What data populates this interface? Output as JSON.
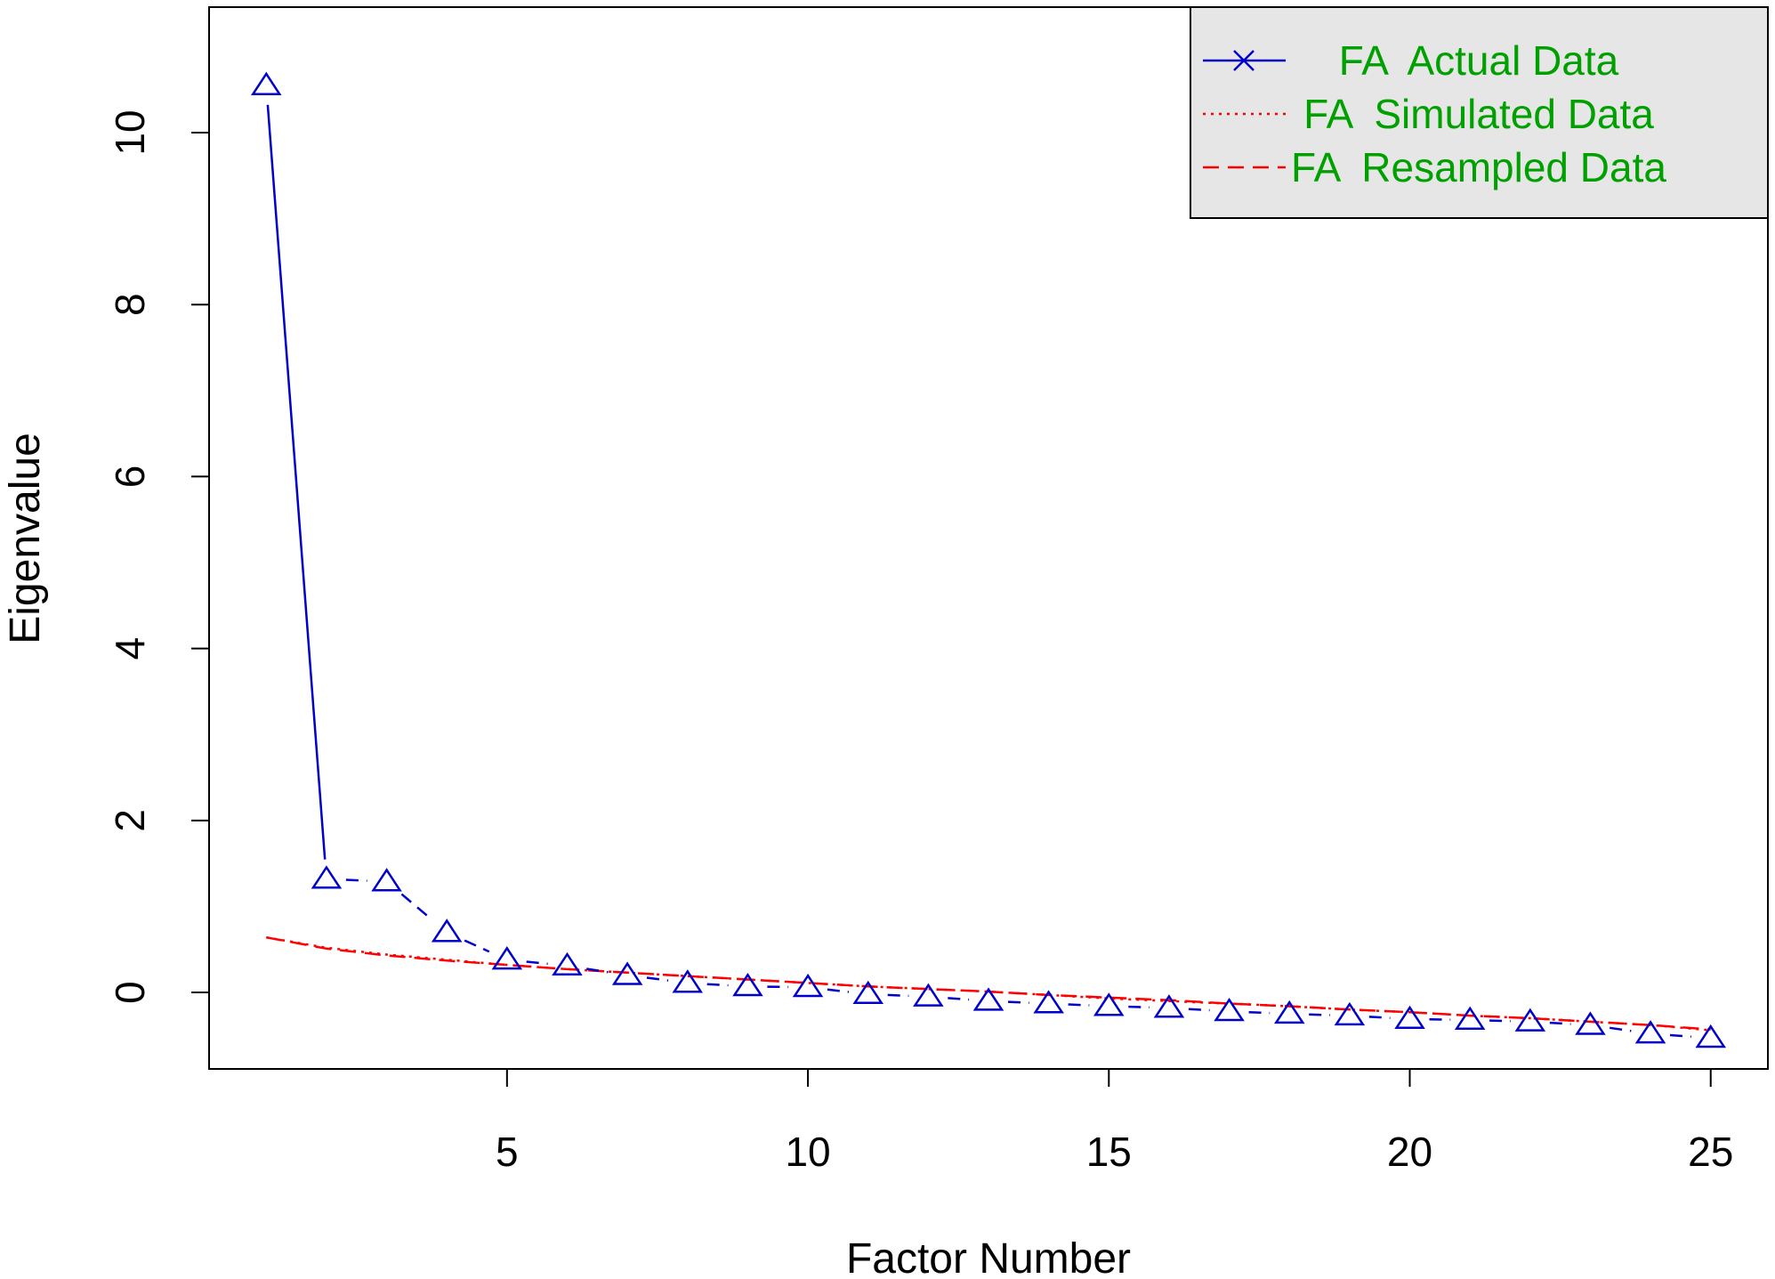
{
  "chart_data": {
    "type": "line",
    "title": "",
    "xlabel": "Factor Number",
    "ylabel": "Eigenvalue",
    "xlim": [
      0.05,
      25.95
    ],
    "ylim": [
      -0.89,
      11.46
    ],
    "x_ticks": [
      5,
      10,
      15,
      20,
      25
    ],
    "x_tick_labels": [
      "5",
      "10",
      "15",
      "20",
      "25"
    ],
    "y_ticks": [
      0,
      2,
      4,
      6,
      8,
      10
    ],
    "y_tick_labels": [
      "0",
      "2",
      "4",
      "6",
      "8",
      "10"
    ],
    "grid": false,
    "legend_position": "top-right",
    "x": [
      1,
      2,
      3,
      4,
      5,
      6,
      7,
      8,
      9,
      10,
      11,
      12,
      13,
      14,
      15,
      16,
      17,
      18,
      19,
      20,
      21,
      22,
      23,
      24,
      25
    ],
    "series": [
      {
        "name": "FA  Actual Data",
        "color": "#0000cc",
        "marker": "triangle",
        "values": [
          10.55,
          1.32,
          1.29,
          0.7,
          0.38,
          0.31,
          0.2,
          0.11,
          0.07,
          0.06,
          -0.02,
          -0.05,
          -0.1,
          -0.13,
          -0.16,
          -0.18,
          -0.22,
          -0.25,
          -0.27,
          -0.31,
          -0.32,
          -0.34,
          -0.38,
          -0.48,
          -0.53
        ]
      },
      {
        "name": "FA  Simulated Data",
        "color": "#ff0000",
        "marker": "none",
        "values": [
          0.64,
          0.52,
          0.44,
          0.38,
          0.32,
          0.27,
          0.23,
          0.19,
          0.15,
          0.11,
          0.07,
          0.04,
          0.01,
          -0.03,
          -0.07,
          -0.1,
          -0.13,
          -0.16,
          -0.2,
          -0.23,
          -0.27,
          -0.3,
          -0.34,
          -0.38,
          -0.44
        ]
      },
      {
        "name": "FA  Resampled Data",
        "color": "#ff0000",
        "marker": "none",
        "values": [
          0.64,
          0.51,
          0.43,
          0.37,
          0.32,
          0.27,
          0.23,
          0.19,
          0.15,
          0.11,
          0.07,
          0.04,
          0.01,
          -0.03,
          -0.06,
          -0.09,
          -0.13,
          -0.16,
          -0.2,
          -0.23,
          -0.27,
          -0.3,
          -0.34,
          -0.38,
          -0.43
        ]
      }
    ]
  }
}
